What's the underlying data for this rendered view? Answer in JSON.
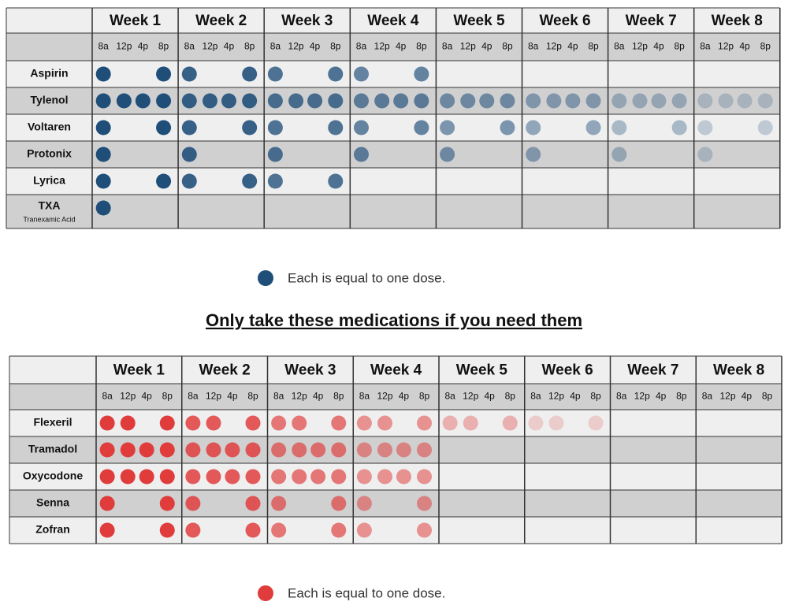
{
  "weeks": [
    "Week 1",
    "Week 2",
    "Week 3",
    "Week 4",
    "Week 5",
    "Week 6",
    "Week 7",
    "Week 8"
  ],
  "times": [
    "8a",
    "12p",
    "4p",
    "8p"
  ],
  "scheduled": {
    "rows": [
      {
        "name": "Aspirin",
        "doses": [
          [
            1,
            0,
            0,
            1
          ],
          [
            1,
            0,
            0,
            1
          ],
          [
            1,
            0,
            0,
            1
          ],
          [
            1,
            0,
            0,
            1
          ],
          [
            0,
            0,
            0,
            0
          ],
          [
            0,
            0,
            0,
            0
          ],
          [
            0,
            0,
            0,
            0
          ],
          [
            0,
            0,
            0,
            0
          ]
        ]
      },
      {
        "name": "Tylenol",
        "doses": [
          [
            1,
            1,
            1,
            1
          ],
          [
            1,
            1,
            1,
            1
          ],
          [
            1,
            1,
            1,
            1
          ],
          [
            1,
            1,
            1,
            1
          ],
          [
            1,
            1,
            1,
            1
          ],
          [
            1,
            1,
            1,
            1
          ],
          [
            1,
            1,
            1,
            1
          ],
          [
            1,
            1,
            1,
            1
          ]
        ]
      },
      {
        "name": "Voltaren",
        "doses": [
          [
            1,
            0,
            0,
            1
          ],
          [
            1,
            0,
            0,
            1
          ],
          [
            1,
            0,
            0,
            1
          ],
          [
            1,
            0,
            0,
            1
          ],
          [
            1,
            0,
            0,
            1
          ],
          [
            1,
            0,
            0,
            1
          ],
          [
            1,
            0,
            0,
            1
          ],
          [
            1,
            0,
            0,
            1
          ]
        ]
      },
      {
        "name": "Protonix",
        "doses": [
          [
            1,
            0,
            0,
            0
          ],
          [
            1,
            0,
            0,
            0
          ],
          [
            1,
            0,
            0,
            0
          ],
          [
            1,
            0,
            0,
            0
          ],
          [
            1,
            0,
            0,
            0
          ],
          [
            1,
            0,
            0,
            0
          ],
          [
            1,
            0,
            0,
            0
          ],
          [
            1,
            0,
            0,
            0
          ]
        ]
      },
      {
        "name": "Lyrica",
        "doses": [
          [
            1,
            0,
            0,
            1
          ],
          [
            1,
            0,
            0,
            1
          ],
          [
            1,
            0,
            0,
            1
          ],
          [
            0,
            0,
            0,
            0
          ],
          [
            0,
            0,
            0,
            0
          ],
          [
            0,
            0,
            0,
            0
          ],
          [
            0,
            0,
            0,
            0
          ],
          [
            0,
            0,
            0,
            0
          ]
        ]
      },
      {
        "name": "TXA",
        "subtitle": "Tranexamic Acid",
        "doses": [
          [
            1,
            0,
            0,
            0
          ],
          [
            0,
            0,
            0,
            0
          ],
          [
            0,
            0,
            0,
            0
          ],
          [
            0,
            0,
            0,
            0
          ],
          [
            0,
            0,
            0,
            0
          ],
          [
            0,
            0,
            0,
            0
          ],
          [
            0,
            0,
            0,
            0
          ],
          [
            0,
            0,
            0,
            0
          ]
        ]
      }
    ],
    "color": "#1f4e79",
    "legend": "Each is equal to one dose."
  },
  "heading": "Only take these medications if you need them",
  "as_needed": {
    "rows": [
      {
        "name": "Flexeril",
        "doses": [
          [
            1,
            1,
            0,
            1
          ],
          [
            1,
            1,
            0,
            1
          ],
          [
            1,
            1,
            0,
            1
          ],
          [
            1,
            1,
            0,
            1
          ],
          [
            1,
            1,
            0,
            1
          ],
          [
            1,
            1,
            0,
            1
          ],
          [
            0,
            0,
            0,
            0
          ],
          [
            0,
            0,
            0,
            0
          ]
        ]
      },
      {
        "name": "Tramadol",
        "doses": [
          [
            1,
            1,
            1,
            1
          ],
          [
            1,
            1,
            1,
            1
          ],
          [
            1,
            1,
            1,
            1
          ],
          [
            1,
            1,
            1,
            1
          ],
          [
            0,
            0,
            0,
            0
          ],
          [
            0,
            0,
            0,
            0
          ],
          [
            0,
            0,
            0,
            0
          ],
          [
            0,
            0,
            0,
            0
          ]
        ]
      },
      {
        "name": "Oxycodone",
        "doses": [
          [
            1,
            1,
            1,
            1
          ],
          [
            1,
            1,
            1,
            1
          ],
          [
            1,
            1,
            1,
            1
          ],
          [
            1,
            1,
            1,
            1
          ],
          [
            0,
            0,
            0,
            0
          ],
          [
            0,
            0,
            0,
            0
          ],
          [
            0,
            0,
            0,
            0
          ],
          [
            0,
            0,
            0,
            0
          ]
        ]
      },
      {
        "name": "Senna",
        "doses": [
          [
            1,
            0,
            0,
            1
          ],
          [
            1,
            0,
            0,
            1
          ],
          [
            1,
            0,
            0,
            1
          ],
          [
            1,
            0,
            0,
            1
          ],
          [
            0,
            0,
            0,
            0
          ],
          [
            0,
            0,
            0,
            0
          ],
          [
            0,
            0,
            0,
            0
          ],
          [
            0,
            0,
            0,
            0
          ]
        ]
      },
      {
        "name": "Zofran",
        "doses": [
          [
            1,
            0,
            0,
            1
          ],
          [
            1,
            0,
            0,
            1
          ],
          [
            1,
            0,
            0,
            1
          ],
          [
            1,
            0,
            0,
            1
          ],
          [
            0,
            0,
            0,
            0
          ],
          [
            0,
            0,
            0,
            0
          ],
          [
            0,
            0,
            0,
            0
          ],
          [
            0,
            0,
            0,
            0
          ]
        ]
      }
    ],
    "color": "#e03c3c",
    "legend": "Each is equal to one dose."
  }
}
